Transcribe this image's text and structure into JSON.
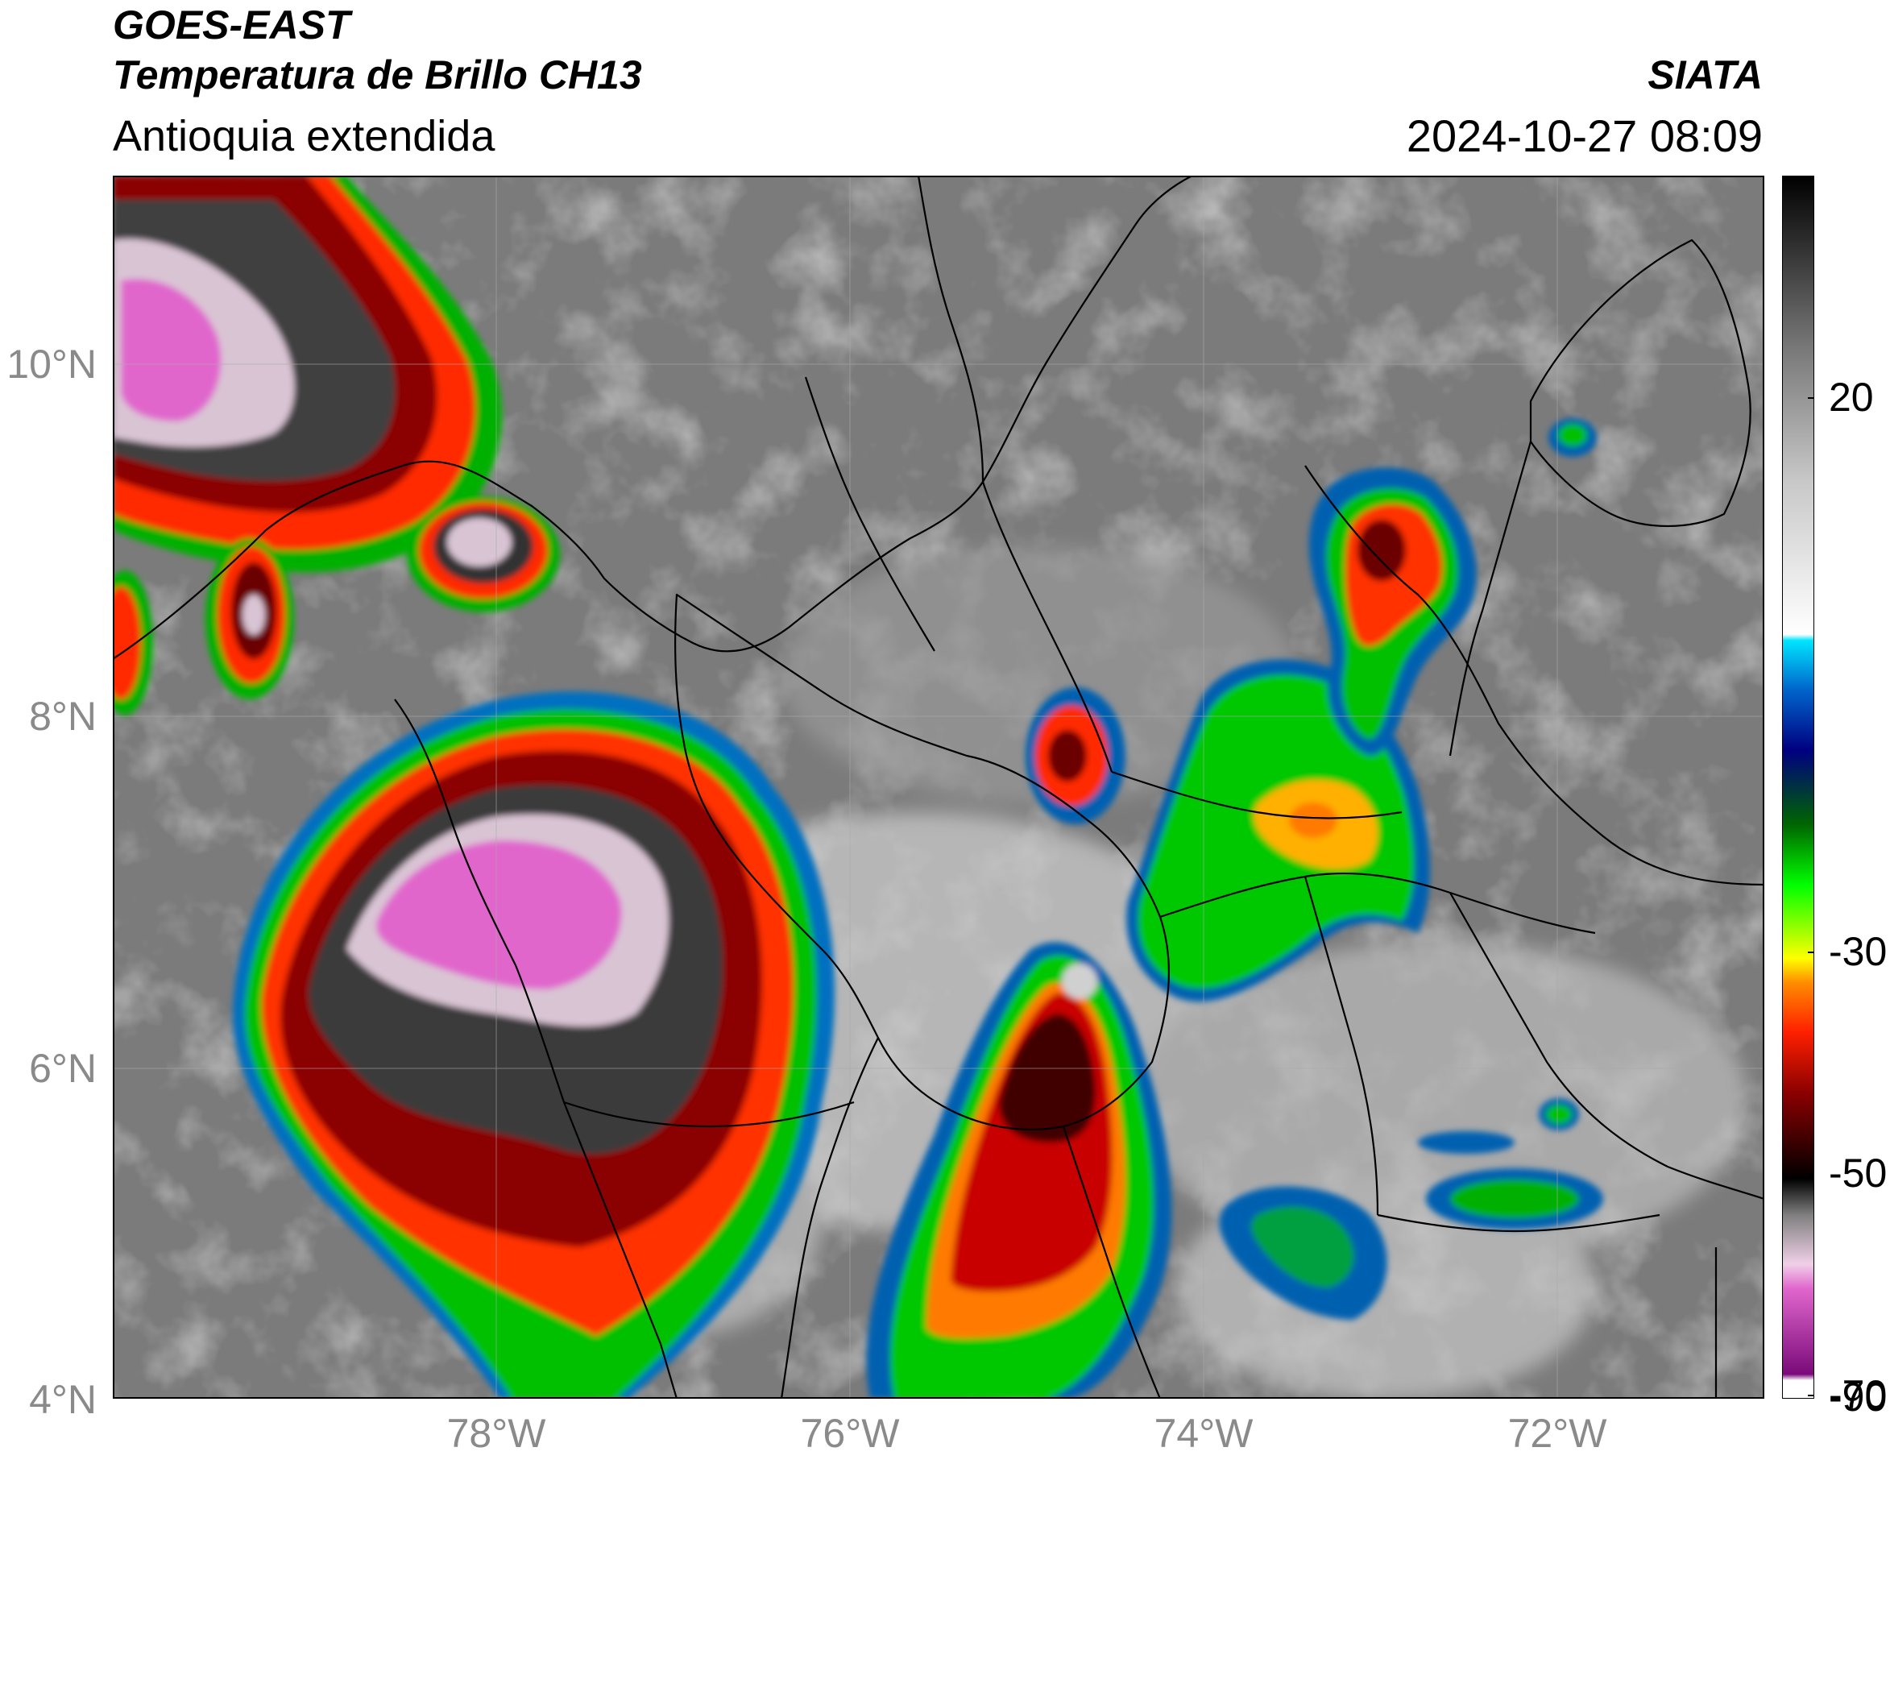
{
  "header": {
    "satellite": "GOES-EAST",
    "product": "Temperatura de Brillo CH13",
    "region": "Antioquia extendida",
    "source": "SIATA",
    "timestamp": "2024-10-27 08:09"
  },
  "map": {
    "lon_range": [
      -80.5,
      -70.5
    ],
    "lat_range": [
      2.5,
      11.0
    ],
    "lat_ticks": [
      "10°N",
      "8°N",
      "6°N",
      "4°N"
    ],
    "lon_ticks": [
      "78°W",
      "76°W",
      "74°W",
      "72°W"
    ],
    "grid": true,
    "base_color": "#7a7a7a",
    "border_color": "#000000"
  },
  "colorbar": {
    "orientation": "vertical",
    "placement": "right",
    "tick_labels": [
      "20",
      "-30",
      "-50",
      "-70",
      "-90"
    ],
    "range": [
      -90,
      30
    ],
    "stops": [
      "#ffffff",
      "#800080",
      "#e066cc",
      "#f0d0e8",
      "#808080",
      "#000000",
      "#8b0000",
      "#ff2000",
      "#ff8c00",
      "#ffff00",
      "#00ff00",
      "#006400",
      "#000080",
      "#0066cc",
      "#00e5ff",
      "#ffffff",
      "#c0c0c0",
      "#707070",
      "#303030",
      "#000000"
    ]
  }
}
